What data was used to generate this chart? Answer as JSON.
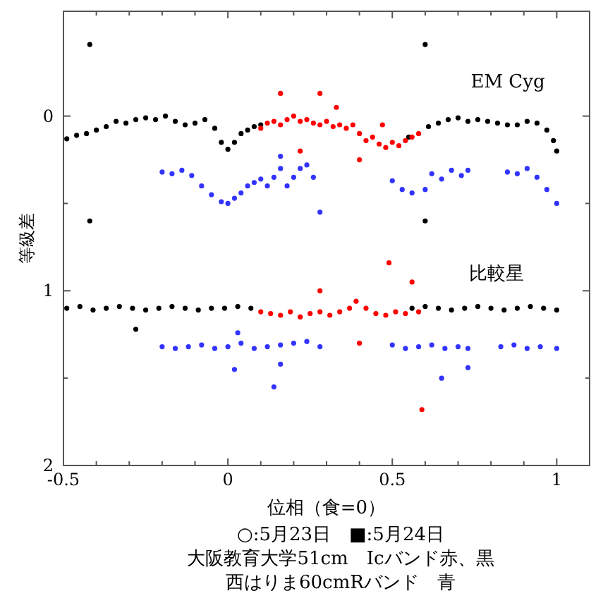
{
  "chart_data": {
    "type": "scatter",
    "xlabel": "位相（食=0）",
    "ylabel": "等級差",
    "xlim": [
      -0.5,
      1.1
    ],
    "ylim": [
      2,
      -0.6
    ],
    "xticks": [
      -0.5,
      {
        "value": -0.4,
        "label": null
      },
      {
        "value": -0.3,
        "label": null
      },
      {
        "value": -0.2,
        "label": null
      },
      {
        "value": -0.1,
        "label": null
      },
      0,
      {
        "value": 0.1,
        "label": null
      },
      {
        "value": 0.2,
        "label": null
      },
      {
        "value": 0.3,
        "label": null
      },
      {
        "value": 0.4,
        "label": null
      },
      0.5,
      {
        "value": 0.6,
        "label": null
      },
      {
        "value": 0.7,
        "label": null
      },
      {
        "value": 0.8,
        "label": null
      },
      {
        "value": 0.9,
        "label": null
      },
      1
    ],
    "yticks": [
      0,
      {
        "value": 0.5,
        "label": null
      },
      1,
      {
        "value": 1.5,
        "label": null
      },
      2
    ],
    "marker": "circle",
    "grid": false,
    "annotations": [
      "EM Cyg",
      "比較星",
      "○:5月23日　■:5月24日",
      "大阪教育大学51cm　Icバンド赤、黒",
      "西はりま60cmRバンド　青"
    ],
    "series": [
      {
        "color": "#000000",
        "x": [
          -0.49,
          -0.46,
          -0.43,
          -0.4,
          -0.37,
          -0.34,
          -0.31,
          -0.28,
          -0.25,
          -0.22,
          -0.19,
          -0.16,
          -0.13,
          -0.1,
          -0.07,
          -0.04,
          -0.02,
          0.0,
          0.02,
          0.04,
          0.06,
          0.08,
          0.1,
          -0.42,
          -0.42,
          0.6,
          0.6,
          0.55,
          0.61,
          0.64,
          0.67,
          0.7,
          0.73,
          0.76,
          0.79,
          0.82,
          0.85,
          0.88,
          0.91,
          0.94,
          0.97,
          0.99,
          1.0
        ],
        "values": [
          0.13,
          0.11,
          0.1,
          0.08,
          0.06,
          0.03,
          0.04,
          0.02,
          0.01,
          0.02,
          0.0,
          0.03,
          0.05,
          0.04,
          0.02,
          0.07,
          0.15,
          0.19,
          0.15,
          0.1,
          0.08,
          0.06,
          0.05,
          -0.41,
          0.6,
          -0.41,
          0.6,
          0.12,
          0.06,
          0.04,
          0.02,
          0.01,
          0.03,
          0.02,
          0.03,
          0.04,
          0.05,
          0.05,
          0.03,
          0.04,
          0.08,
          0.14,
          0.2
        ]
      },
      {
        "color": "#ff0000",
        "x": [
          0.1,
          0.12,
          0.14,
          0.16,
          0.18,
          0.2,
          0.22,
          0.24,
          0.26,
          0.28,
          0.3,
          0.32,
          0.34,
          0.36,
          0.38,
          0.4,
          0.42,
          0.44,
          0.46,
          0.48,
          0.5,
          0.52,
          0.54,
          0.56,
          0.58,
          0.16,
          0.28,
          0.22,
          0.4,
          0.47,
          0.33
        ],
        "values": [
          0.07,
          0.04,
          0.03,
          0.05,
          0.02,
          0.0,
          0.03,
          0.02,
          0.04,
          0.05,
          0.03,
          0.06,
          0.05,
          0.07,
          0.05,
          0.1,
          0.14,
          0.12,
          0.16,
          0.18,
          0.15,
          0.17,
          0.14,
          0.12,
          0.1,
          -0.13,
          -0.13,
          0.2,
          0.25,
          0.05,
          -0.05
        ]
      },
      {
        "color": "#3333ff",
        "x": [
          -0.2,
          -0.17,
          -0.14,
          -0.11,
          -0.08,
          -0.05,
          -0.02,
          0.0,
          0.02,
          0.04,
          0.06,
          0.08,
          0.1,
          0.12,
          0.14,
          0.16,
          0.16,
          0.18,
          0.2,
          0.22,
          0.24,
          0.26,
          0.28,
          0.5,
          0.53,
          0.56,
          0.6,
          0.62,
          0.65,
          0.68,
          0.71,
          0.73,
          0.85,
          0.88,
          0.91,
          0.94,
          0.97,
          1.0
        ],
        "values": [
          0.32,
          0.33,
          0.31,
          0.34,
          0.4,
          0.45,
          0.49,
          0.5,
          0.47,
          0.44,
          0.4,
          0.38,
          0.36,
          0.4,
          0.35,
          0.3,
          0.23,
          0.4,
          0.35,
          0.3,
          0.28,
          0.35,
          0.55,
          0.37,
          0.42,
          0.44,
          0.42,
          0.33,
          0.36,
          0.31,
          0.34,
          0.31,
          0.32,
          0.33,
          0.3,
          0.35,
          0.42,
          0.5
        ]
      },
      {
        "color": "#000000",
        "x": [
          -0.49,
          -0.45,
          -0.41,
          -0.37,
          -0.33,
          -0.29,
          -0.25,
          -0.21,
          -0.17,
          -0.13,
          -0.09,
          -0.05,
          -0.01,
          0.03,
          0.07,
          -0.28,
          0.56,
          0.6,
          0.64,
          0.68,
          0.72,
          0.76,
          0.8,
          0.84,
          0.88,
          0.92,
          0.96,
          1.0
        ],
        "values": [
          1.1,
          1.09,
          1.11,
          1.1,
          1.09,
          1.1,
          1.11,
          1.1,
          1.09,
          1.1,
          1.11,
          1.1,
          1.1,
          1.09,
          1.1,
          1.22,
          1.1,
          1.09,
          1.1,
          1.11,
          1.1,
          1.09,
          1.1,
          1.11,
          1.1,
          1.09,
          1.1,
          1.11
        ]
      },
      {
        "color": "#ff0000",
        "x": [
          0.1,
          0.13,
          0.16,
          0.19,
          0.22,
          0.25,
          0.28,
          0.31,
          0.34,
          0.37,
          0.39,
          0.42,
          0.45,
          0.48,
          0.51,
          0.54,
          0.58,
          0.49,
          0.59,
          0.28,
          0.4,
          0.56
        ],
        "values": [
          1.12,
          1.13,
          1.14,
          1.12,
          1.15,
          1.13,
          1.12,
          1.14,
          1.12,
          1.1,
          1.06,
          1.1,
          1.13,
          1.14,
          1.12,
          1.13,
          1.12,
          0.84,
          1.68,
          1.0,
          1.3,
          0.95
        ]
      },
      {
        "color": "#3333ff",
        "x": [
          -0.2,
          -0.16,
          -0.12,
          -0.08,
          -0.04,
          0.0,
          0.04,
          0.08,
          0.12,
          0.16,
          0.2,
          0.24,
          0.28,
          0.5,
          0.54,
          0.58,
          0.62,
          0.66,
          0.7,
          0.73,
          0.83,
          0.87,
          0.91,
          0.95,
          1.0,
          0.14,
          0.02,
          0.16,
          0.65,
          0.73,
          0.03
        ],
        "values": [
          1.32,
          1.33,
          1.32,
          1.31,
          1.33,
          1.32,
          1.3,
          1.33,
          1.32,
          1.31,
          1.3,
          1.29,
          1.32,
          1.31,
          1.33,
          1.32,
          1.31,
          1.33,
          1.32,
          1.33,
          1.32,
          1.31,
          1.33,
          1.32,
          1.33,
          1.55,
          1.45,
          1.42,
          1.5,
          1.44,
          1.24
        ]
      }
    ]
  }
}
